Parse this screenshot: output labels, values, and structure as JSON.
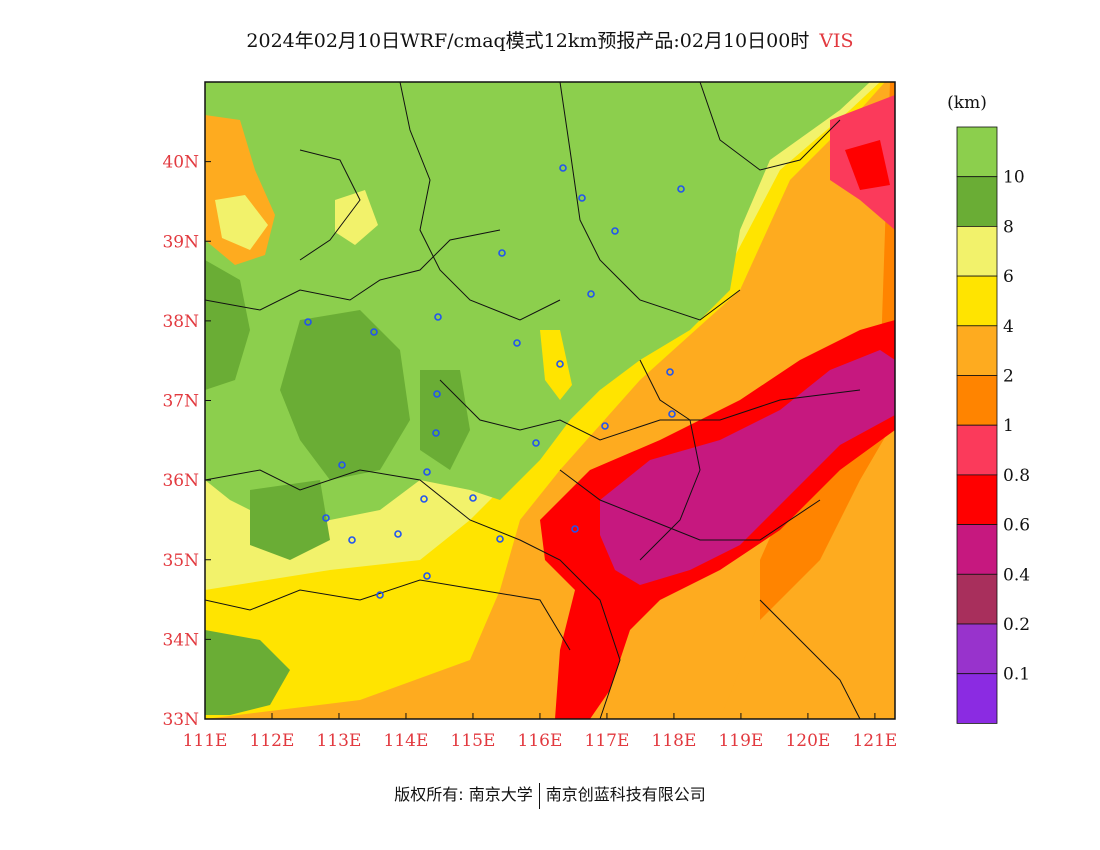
{
  "title": {
    "main": "2024年02月10日WRF/cmaq模式12km预报产品:02月10日00时",
    "variable": "VIS"
  },
  "legend": {
    "unit": "(km)",
    "classes": [
      {
        "label": "",
        "color": "#8ccf4d"
      },
      {
        "label": "10",
        "color": "#6aad35"
      },
      {
        "label": "8",
        "color": "#f2f26b"
      },
      {
        "label": "6",
        "color": "#ffe400"
      },
      {
        "label": "4",
        "color": "#feab1f"
      },
      {
        "label": "2",
        "color": "#ff8400"
      },
      {
        "label": "1",
        "color": "#fb3a5b"
      },
      {
        "label": "0.8",
        "color": "#ff0000"
      },
      {
        "label": "0.6",
        "color": "#c6187f"
      },
      {
        "label": "0.4",
        "color": "#a82f5c"
      },
      {
        "label": "0.2",
        "color": "#9833cc"
      },
      {
        "label": "0.1",
        "color": "#8b2be2"
      }
    ]
  },
  "axes": {
    "x_ticks": [
      "111E",
      "112E",
      "113E",
      "114E",
      "115E",
      "116E",
      "117E",
      "118E",
      "119E",
      "120E",
      "121E"
    ],
    "y_ticks": [
      "33N",
      "34N",
      "35N",
      "36N",
      "37N",
      "38N",
      "39N",
      "40N"
    ],
    "lon_range": [
      111,
      121.3
    ],
    "lat_range": [
      33,
      41
    ]
  },
  "footer": {
    "left": "版权所有: 南京大学",
    "right": "南京创蓝科技有限公司"
  }
}
